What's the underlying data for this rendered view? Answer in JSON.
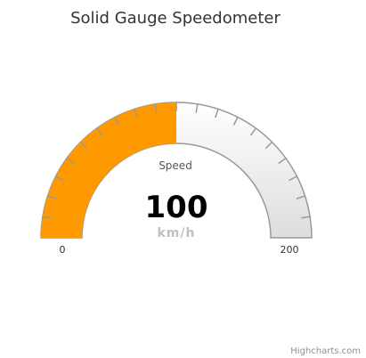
{
  "chart_data": {
    "type": "solid-gauge",
    "title": "Solid Gauge Speedometer",
    "series": [
      {
        "name": "Speed",
        "value": 100,
        "unit": "km/h"
      }
    ],
    "min": 0,
    "max": 200,
    "tick_labels": [
      "0",
      "200"
    ],
    "minor_tick_count": 20,
    "grid": false
  },
  "colors": {
    "fill": "#ff9900",
    "background_light": "#ffffff",
    "background_dark": "#dddddd",
    "outline": "#999999",
    "ticks": "#999999"
  },
  "credits": "Highcharts.com"
}
